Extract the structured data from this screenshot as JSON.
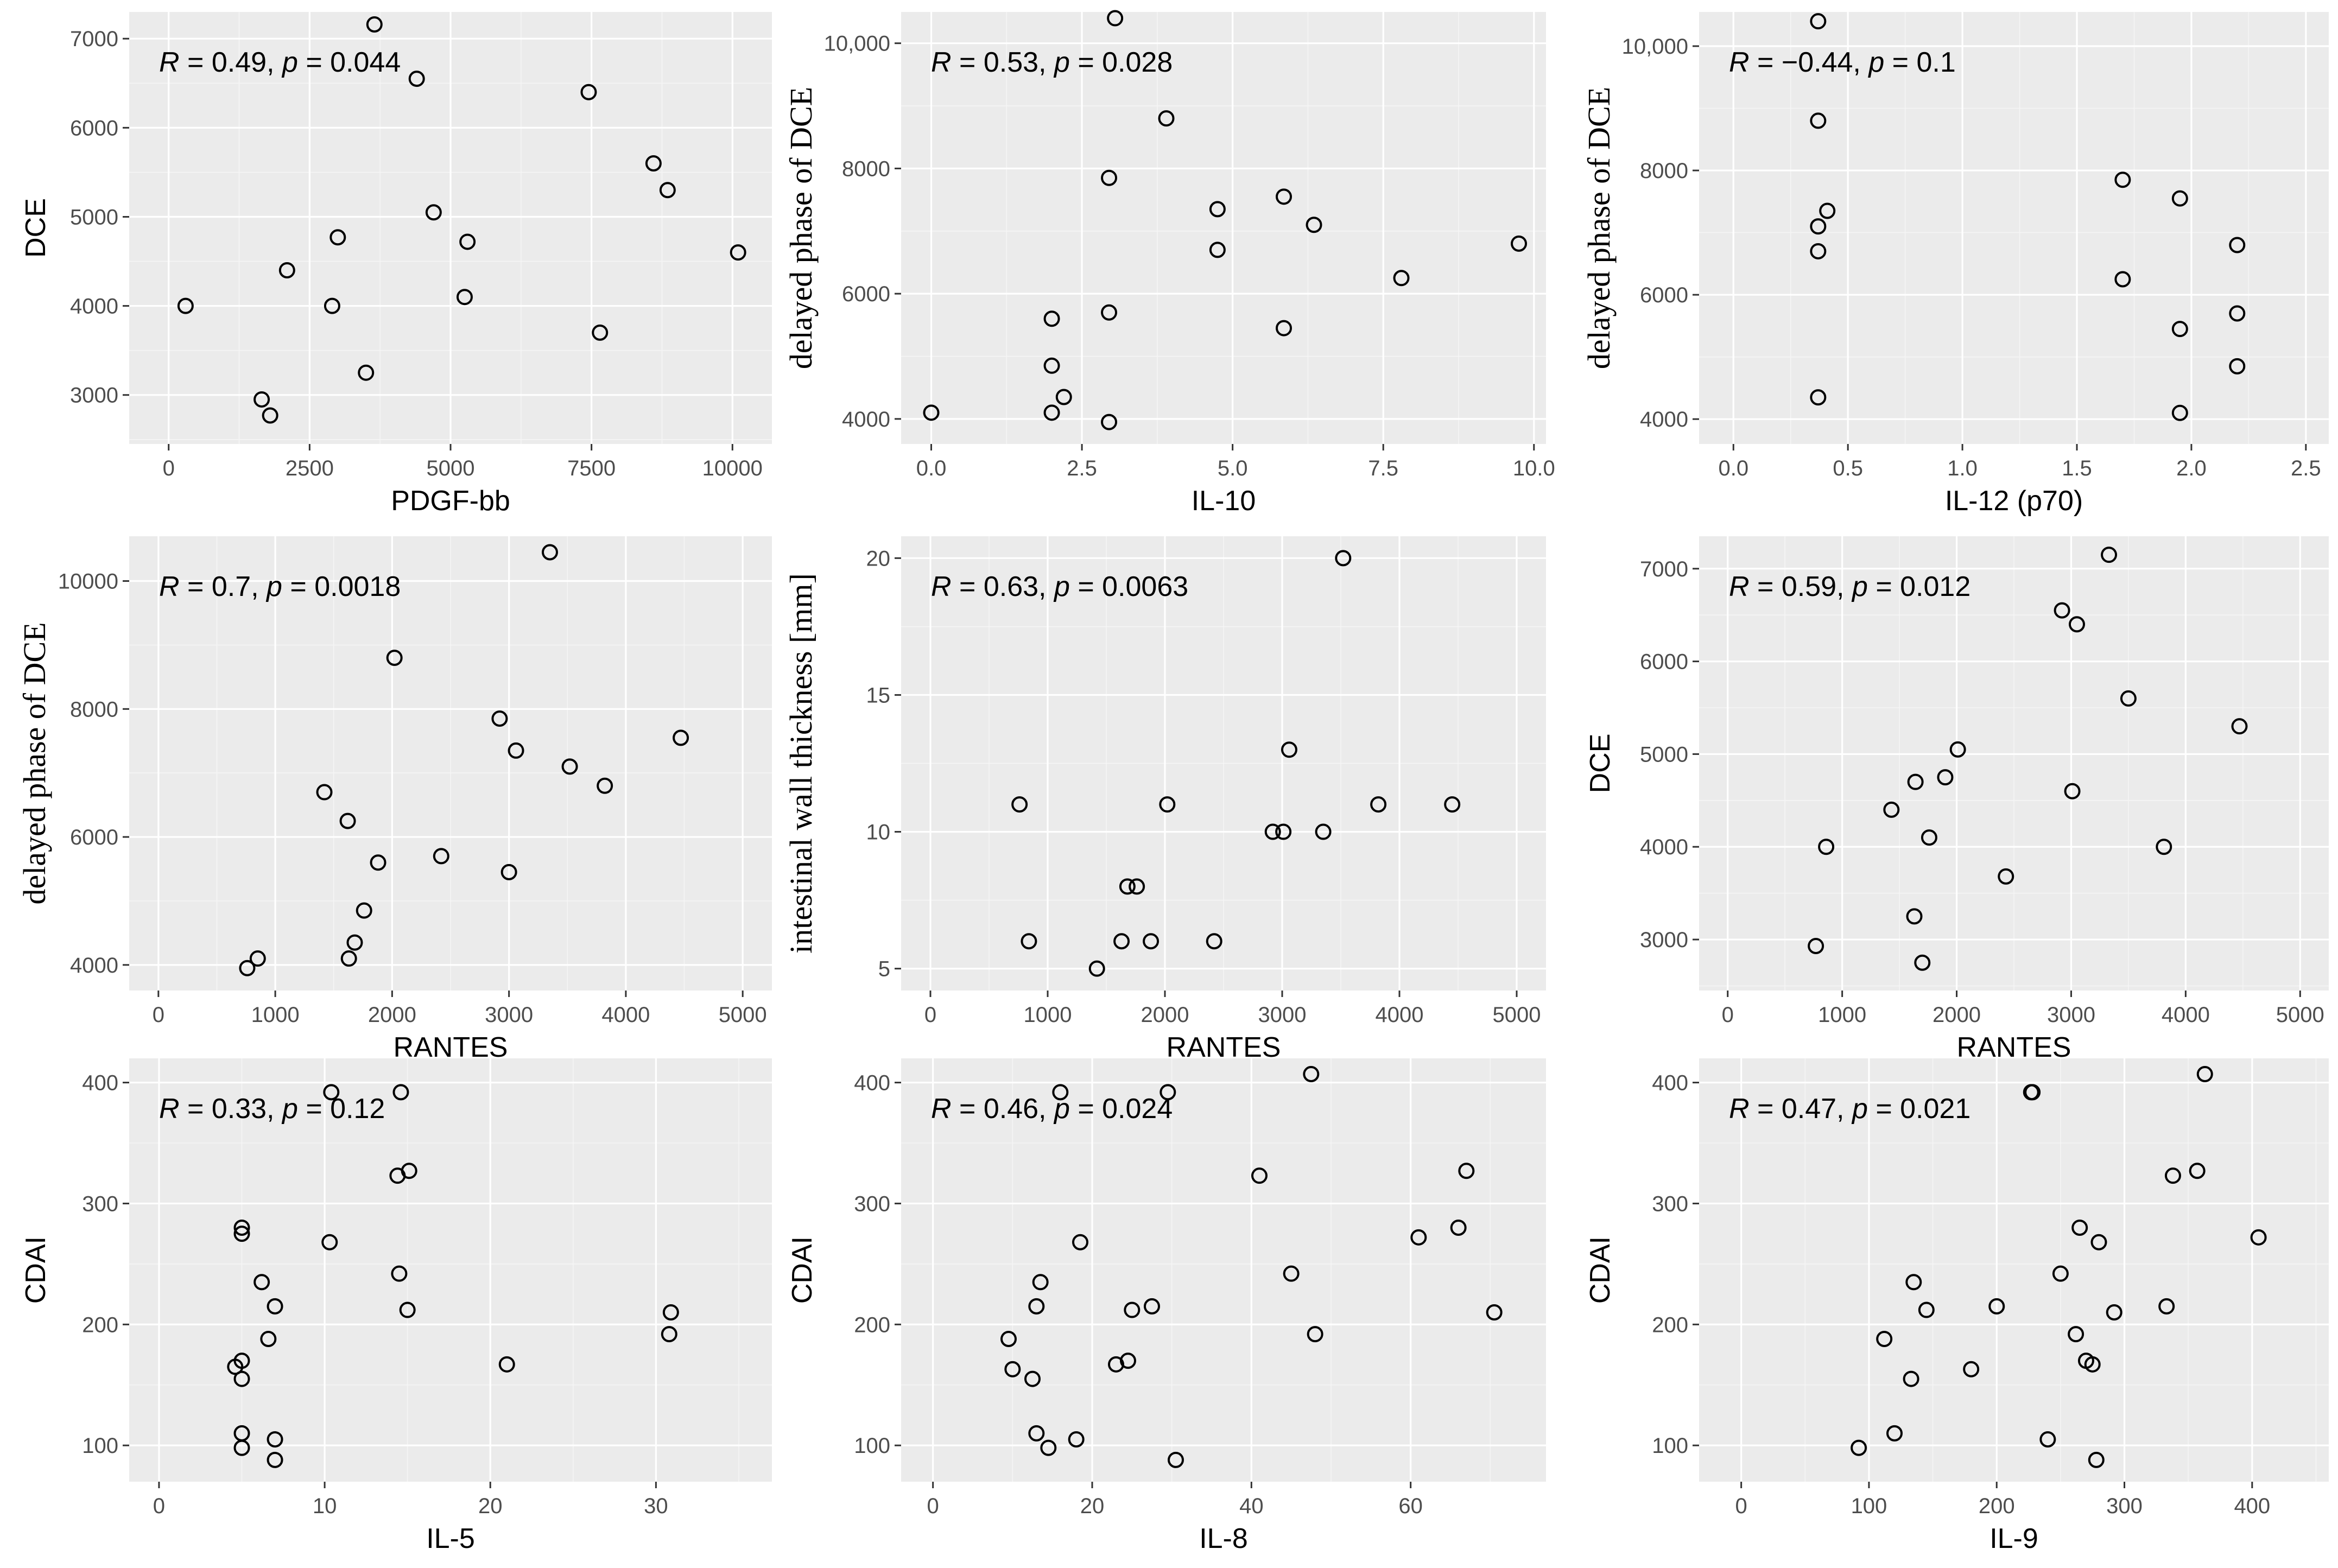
{
  "chart_data": [
    {
      "type": "scatter",
      "xlabel": "PDGF-bb",
      "ylabel": "DCE",
      "annotation": {
        "r": "0.49",
        "p": "0.044"
      },
      "xlim": [
        -700,
        10700
      ],
      "ylim": [
        2450,
        7300
      ],
      "xticks": [
        0,
        2500,
        5000,
        7500,
        10000
      ],
      "xtick_labels": [
        "0",
        "2500",
        "5000",
        "7500",
        "10000"
      ],
      "yticks": [
        3000,
        4000,
        5000,
        6000,
        7000
      ],
      "ytick_labels": [
        "3000",
        "4000",
        "5000",
        "6000",
        "7000"
      ],
      "points": [
        [
          300,
          4000
        ],
        [
          1650,
          2950
        ],
        [
          1800,
          2770
        ],
        [
          2100,
          4400
        ],
        [
          2900,
          4000
        ],
        [
          3000,
          4770
        ],
        [
          3500,
          3250
        ],
        [
          3650,
          7160
        ],
        [
          4400,
          6550
        ],
        [
          4700,
          5050
        ],
        [
          5250,
          4100
        ],
        [
          5300,
          4720
        ],
        [
          7450,
          6400
        ],
        [
          7650,
          3700
        ],
        [
          8600,
          5600
        ],
        [
          8850,
          5300
        ],
        [
          10100,
          4600
        ]
      ]
    },
    {
      "type": "scatter",
      "xlabel": "IL-10",
      "ylabel": "delayed phase of DCE",
      "annotation": {
        "r": "0.53",
        "p": "0.028"
      },
      "xlim": [
        -0.5,
        10.2
      ],
      "ylim": [
        3600,
        10500
      ],
      "xticks": [
        0,
        2.5,
        5,
        7.5,
        10
      ],
      "xtick_labels": [
        "0.0",
        "2.5",
        "5.0",
        "7.5",
        "10.0"
      ],
      "yticks": [
        4000,
        6000,
        8000,
        10000
      ],
      "ytick_labels": [
        "4000",
        "6000",
        "8000",
        "10,000"
      ],
      "points": [
        [
          0,
          4100
        ],
        [
          2,
          4100
        ],
        [
          2,
          4850
        ],
        [
          2,
          5600
        ],
        [
          2.2,
          4350
        ],
        [
          2.95,
          3950
        ],
        [
          2.95,
          5700
        ],
        [
          2.95,
          7850
        ],
        [
          3.05,
          10400
        ],
        [
          3.9,
          8800
        ],
        [
          4.75,
          6700
        ],
        [
          4.75,
          7350
        ],
        [
          5.85,
          5450
        ],
        [
          5.85,
          7550
        ],
        [
          6.35,
          7100
        ],
        [
          7.8,
          6250
        ],
        [
          9.75,
          6800
        ]
      ]
    },
    {
      "type": "scatter",
      "xlabel": "IL-12 (p70)",
      "ylabel": "delayed phase of DCE",
      "annotation": {
        "r": "−0.44",
        "p": "0.1"
      },
      "xlim": [
        -0.15,
        2.6
      ],
      "ylim": [
        3600,
        10550
      ],
      "xticks": [
        0,
        0.5,
        1,
        1.5,
        2,
        2.5
      ],
      "xtick_labels": [
        "0.0",
        "0.5",
        "1.0",
        "1.5",
        "2.0",
        "2.5"
      ],
      "yticks": [
        4000,
        6000,
        8000,
        10000
      ],
      "ytick_labels": [
        "4000",
        "6000",
        "8000",
        "10,000"
      ],
      "points": [
        [
          0.37,
          10400
        ],
        [
          0.37,
          8800
        ],
        [
          0.37,
          7100
        ],
        [
          0.37,
          6700
        ],
        [
          0.37,
          4350
        ],
        [
          0.41,
          7350
        ],
        [
          1.7,
          7850
        ],
        [
          1.7,
          6250
        ],
        [
          1.95,
          7550
        ],
        [
          1.95,
          5450
        ],
        [
          1.95,
          4100
        ],
        [
          2.2,
          6800
        ],
        [
          2.2,
          5700
        ],
        [
          2.2,
          4850
        ]
      ]
    },
    {
      "type": "scatter",
      "xlabel": "RANTES",
      "ylabel": "delayed phase of DCE",
      "annotation": {
        "r": "0.7",
        "p": "0.0018"
      },
      "xlim": [
        -250,
        5250
      ],
      "ylim": [
        3600,
        10700
      ],
      "xticks": [
        0,
        1000,
        2000,
        3000,
        4000,
        5000
      ],
      "xtick_labels": [
        "0",
        "1000",
        "2000",
        "3000",
        "4000",
        "5000"
      ],
      "yticks": [
        4000,
        6000,
        8000,
        10000
      ],
      "ytick_labels": [
        "4000",
        "6000",
        "8000",
        "10000"
      ],
      "points": [
        [
          760,
          3950
        ],
        [
          850,
          4100
        ],
        [
          1420,
          6700
        ],
        [
          1620,
          6250
        ],
        [
          1630,
          4100
        ],
        [
          1680,
          4350
        ],
        [
          1760,
          4850
        ],
        [
          1880,
          5600
        ],
        [
          2020,
          8800
        ],
        [
          2420,
          5700
        ],
        [
          2920,
          7850
        ],
        [
          3000,
          5450
        ],
        [
          3060,
          7350
        ],
        [
          3350,
          10450
        ],
        [
          3520,
          7100
        ],
        [
          3820,
          6800
        ],
        [
          4470,
          7550
        ]
      ]
    },
    {
      "type": "scatter",
      "xlabel": "RANTES",
      "ylabel": "intestinal wall thickness [mm]",
      "annotation": {
        "r": "0.63",
        "p": "0.0063"
      },
      "xlim": [
        -250,
        5250
      ],
      "ylim": [
        4.2,
        20.8
      ],
      "xticks": [
        0,
        1000,
        2000,
        3000,
        4000,
        5000
      ],
      "xtick_labels": [
        "0",
        "1000",
        "2000",
        "3000",
        "4000",
        "5000"
      ],
      "yticks": [
        5,
        10,
        15,
        20
      ],
      "ytick_labels": [
        "5",
        "10",
        "15",
        "20"
      ],
      "points": [
        [
          760,
          11
        ],
        [
          840,
          6
        ],
        [
          1420,
          5
        ],
        [
          1630,
          6
        ],
        [
          1680,
          8
        ],
        [
          1760,
          8
        ],
        [
          1880,
          6
        ],
        [
          2020,
          11
        ],
        [
          2420,
          6
        ],
        [
          2920,
          10
        ],
        [
          3010,
          10
        ],
        [
          3060,
          13
        ],
        [
          3350,
          10
        ],
        [
          3520,
          20
        ],
        [
          3820,
          11
        ],
        [
          4450,
          11
        ]
      ]
    },
    {
      "type": "scatter",
      "xlabel": "RANTES",
      "ylabel": "DCE",
      "annotation": {
        "r": "0.59",
        "p": "0.012"
      },
      "xlim": [
        -250,
        5250
      ],
      "ylim": [
        2450,
        7350
      ],
      "xticks": [
        0,
        1000,
        2000,
        3000,
        4000,
        5000
      ],
      "xtick_labels": [
        "0",
        "1000",
        "2000",
        "3000",
        "4000",
        "5000"
      ],
      "yticks": [
        3000,
        4000,
        5000,
        6000,
        7000
      ],
      "ytick_labels": [
        "3000",
        "4000",
        "5000",
        "6000",
        "7000"
      ],
      "points": [
        [
          770,
          2930
        ],
        [
          860,
          4000
        ],
        [
          1430,
          4400
        ],
        [
          1630,
          3250
        ],
        [
          1640,
          4700
        ],
        [
          1700,
          2750
        ],
        [
          1760,
          4100
        ],
        [
          1900,
          4750
        ],
        [
          2010,
          5050
        ],
        [
          2430,
          3680
        ],
        [
          2920,
          6550
        ],
        [
          3010,
          4600
        ],
        [
          3050,
          6400
        ],
        [
          3330,
          7150
        ],
        [
          3500,
          5600
        ],
        [
          3810,
          4000
        ],
        [
          4470,
          5300
        ]
      ]
    },
    {
      "type": "scatter",
      "xlabel": "IL-5",
      "ylabel": "CDAI",
      "annotation": {
        "r": "0.33",
        "p": "0.12"
      },
      "xlim": [
        -1.8,
        37
      ],
      "ylim": [
        70,
        420
      ],
      "xticks": [
        0,
        10,
        20,
        30
      ],
      "xtick_labels": [
        "0",
        "10",
        "20",
        "30"
      ],
      "yticks": [
        100,
        200,
        300,
        400
      ],
      "ytick_labels": [
        "100",
        "200",
        "300",
        "400"
      ],
      "points": [
        [
          4.6,
          165
        ],
        [
          5,
          98
        ],
        [
          5,
          110
        ],
        [
          5,
          155
        ],
        [
          5,
          170
        ],
        [
          5,
          275
        ],
        [
          5,
          280
        ],
        [
          6.2,
          235
        ],
        [
          6.6,
          188
        ],
        [
          7,
          88
        ],
        [
          7,
          105
        ],
        [
          7,
          215
        ],
        [
          10.3,
          268
        ],
        [
          10.4,
          392
        ],
        [
          14.4,
          323
        ],
        [
          14.5,
          242
        ],
        [
          14.6,
          392
        ],
        [
          15,
          212
        ],
        [
          15.1,
          327
        ],
        [
          21,
          167
        ],
        [
          30.8,
          192
        ],
        [
          30.9,
          210
        ]
      ]
    },
    {
      "type": "scatter",
      "xlabel": "IL-8",
      "ylabel": "CDAI",
      "annotation": {
        "r": "0.46",
        "p": "0.024"
      },
      "xlim": [
        -4,
        77
      ],
      "ylim": [
        70,
        420
      ],
      "xticks": [
        0,
        20,
        40,
        60
      ],
      "xtick_labels": [
        "0",
        "20",
        "40",
        "60"
      ],
      "yticks": [
        100,
        200,
        300,
        400
      ],
      "ytick_labels": [
        "100",
        "200",
        "300",
        "400"
      ],
      "points": [
        [
          9.5,
          188
        ],
        [
          10,
          163
        ],
        [
          12.5,
          155
        ],
        [
          13,
          215
        ],
        [
          13,
          110
        ],
        [
          13.5,
          235
        ],
        [
          14.5,
          98
        ],
        [
          16,
          392
        ],
        [
          18,
          105
        ],
        [
          18.5,
          268
        ],
        [
          23,
          167
        ],
        [
          24.5,
          170
        ],
        [
          25,
          212
        ],
        [
          27.5,
          215
        ],
        [
          29.5,
          392
        ],
        [
          30.5,
          88
        ],
        [
          41,
          323
        ],
        [
          45,
          242
        ],
        [
          47.5,
          407
        ],
        [
          48,
          192
        ],
        [
          61,
          272
        ],
        [
          66,
          280
        ],
        [
          67,
          327
        ],
        [
          70.5,
          210
        ]
      ]
    },
    {
      "type": "scatter",
      "xlabel": "IL-9",
      "ylabel": "CDAI",
      "annotation": {
        "r": "0.47",
        "p": "0.021"
      },
      "xlim": [
        -33,
        460
      ],
      "ylim": [
        70,
        420
      ],
      "xticks": [
        0,
        100,
        200,
        300,
        400
      ],
      "xtick_labels": [
        "0",
        "100",
        "200",
        "300",
        "400"
      ],
      "yticks": [
        100,
        200,
        300,
        400
      ],
      "ytick_labels": [
        "100",
        "200",
        "300",
        "400"
      ],
      "points": [
        [
          92,
          98
        ],
        [
          112,
          188
        ],
        [
          120,
          110
        ],
        [
          133,
          155
        ],
        [
          135,
          235
        ],
        [
          145,
          212
        ],
        [
          180,
          163
        ],
        [
          200,
          215
        ],
        [
          227,
          392
        ],
        [
          228,
          392
        ],
        [
          240,
          105
        ],
        [
          250,
          242
        ],
        [
          262,
          192
        ],
        [
          265,
          280
        ],
        [
          270,
          170
        ],
        [
          275,
          167
        ],
        [
          278,
          88
        ],
        [
          280,
          268
        ],
        [
          292,
          210
        ],
        [
          333,
          215
        ],
        [
          338,
          323
        ],
        [
          357,
          327
        ],
        [
          363,
          407
        ],
        [
          405,
          272
        ]
      ]
    }
  ]
}
